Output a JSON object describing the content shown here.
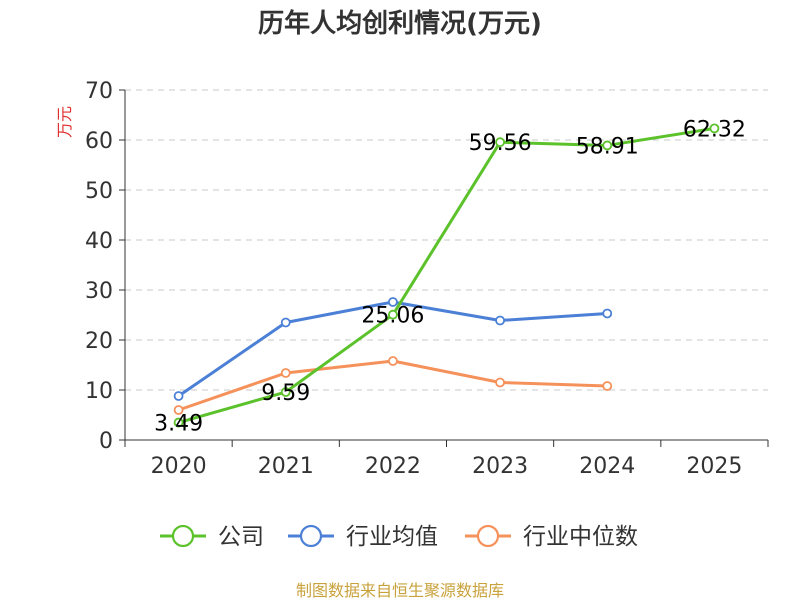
{
  "chart_data": {
    "type": "line",
    "title": "历年人均创利情况(万元)",
    "ylabel": "万元",
    "xlabel": "",
    "ylim": [
      0,
      70
    ],
    "yticks": [
      0,
      10,
      20,
      30,
      40,
      50,
      60,
      70
    ],
    "categories": [
      "2020",
      "2021",
      "2022",
      "2023",
      "2024",
      "2025"
    ],
    "grid": true,
    "legend_position": "bottom",
    "series": [
      {
        "name": "公司",
        "color": "#5cc22c",
        "values": [
          3.49,
          9.59,
          25.06,
          59.56,
          58.91,
          62.32
        ],
        "labels": [
          "3.49",
          "9.59",
          "25.06",
          "59.56",
          "58.91",
          "62.32"
        ]
      },
      {
        "name": "行业均值",
        "color": "#4b80d6",
        "values": [
          8.8,
          23.5,
          27.6,
          23.9,
          25.3,
          null
        ]
      },
      {
        "name": "行业中位数",
        "color": "#f5915a",
        "values": [
          6.0,
          13.4,
          15.8,
          11.5,
          10.8,
          null
        ]
      }
    ],
    "source": "制图数据来自恒生聚源数据库"
  }
}
